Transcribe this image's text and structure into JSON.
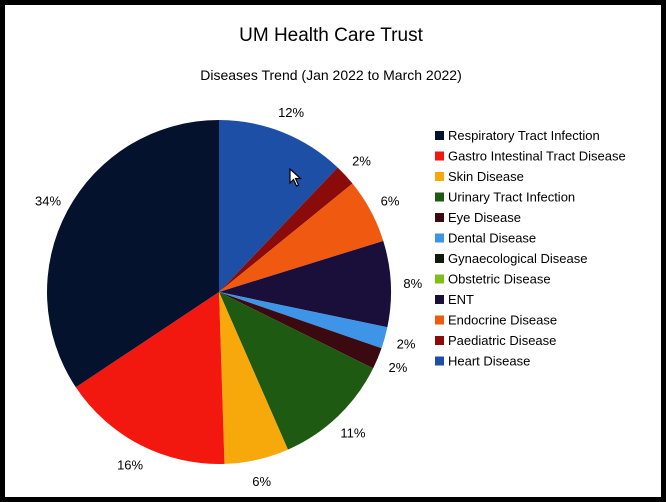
{
  "chart_data": {
    "type": "pie",
    "title": "UM Health Care Trust",
    "subtitle": "Diseases Trend (Jan 2022 to March 2022)",
    "legend_position": "right",
    "slices": [
      {
        "label": "Heart Disease",
        "value": 12,
        "value_label": "12%",
        "color": "#1c4fa5"
      },
      {
        "label": "Paediatric Disease",
        "value": 2,
        "value_label": "2%",
        "color": "#8b0a0a"
      },
      {
        "label": "Endocrine Disease",
        "value": 6,
        "value_label": "6%",
        "color": "#ef5a10"
      },
      {
        "label": "ENT",
        "value": 8,
        "value_label": "8%",
        "color": "#1a0e3a"
      },
      {
        "label": "Dental Disease",
        "value": 2,
        "value_label": "2%",
        "color": "#3e95e8"
      },
      {
        "label": "Eye Disease",
        "value": 2,
        "value_label": "2%",
        "color": "#3a0a10"
      },
      {
        "label": "Urinary Tract Infection",
        "value": 11,
        "value_label": "11%",
        "color": "#1f5a12"
      },
      {
        "label": "Skin Disease",
        "value": 6,
        "value_label": "6%",
        "color": "#f7a90c"
      },
      {
        "label": "Gastro Intestinal Tract Disease",
        "value": 16,
        "value_label": "16%",
        "color": "#f2170f"
      },
      {
        "label": "Respiratory Tract Infection",
        "value": 34,
        "value_label": "34%",
        "color": "#05122e"
      }
    ],
    "legend": [
      {
        "label": "Respiratory Tract Infection",
        "color": "#05122e"
      },
      {
        "label": "Gastro Intestinal Tract Disease",
        "color": "#f2170f"
      },
      {
        "label": "Skin Disease",
        "color": "#f7a90c"
      },
      {
        "label": "Urinary Tract Infection",
        "color": "#1f5a12"
      },
      {
        "label": "Eye Disease",
        "color": "#3a0a10"
      },
      {
        "label": "Dental Disease",
        "color": "#3e95e8"
      },
      {
        "label": "Gynaecological Disease",
        "color": "#0e1a0a"
      },
      {
        "label": "Obstetric Disease",
        "color": "#7fbf17"
      },
      {
        "label": "ENT",
        "color": "#1a0e3a"
      },
      {
        "label": "Endocrine Disease",
        "color": "#ef5a10"
      },
      {
        "label": "Paediatric Disease",
        "color": "#8b0a0a"
      },
      {
        "label": "Heart Disease",
        "color": "#1c4fa5"
      }
    ]
  }
}
